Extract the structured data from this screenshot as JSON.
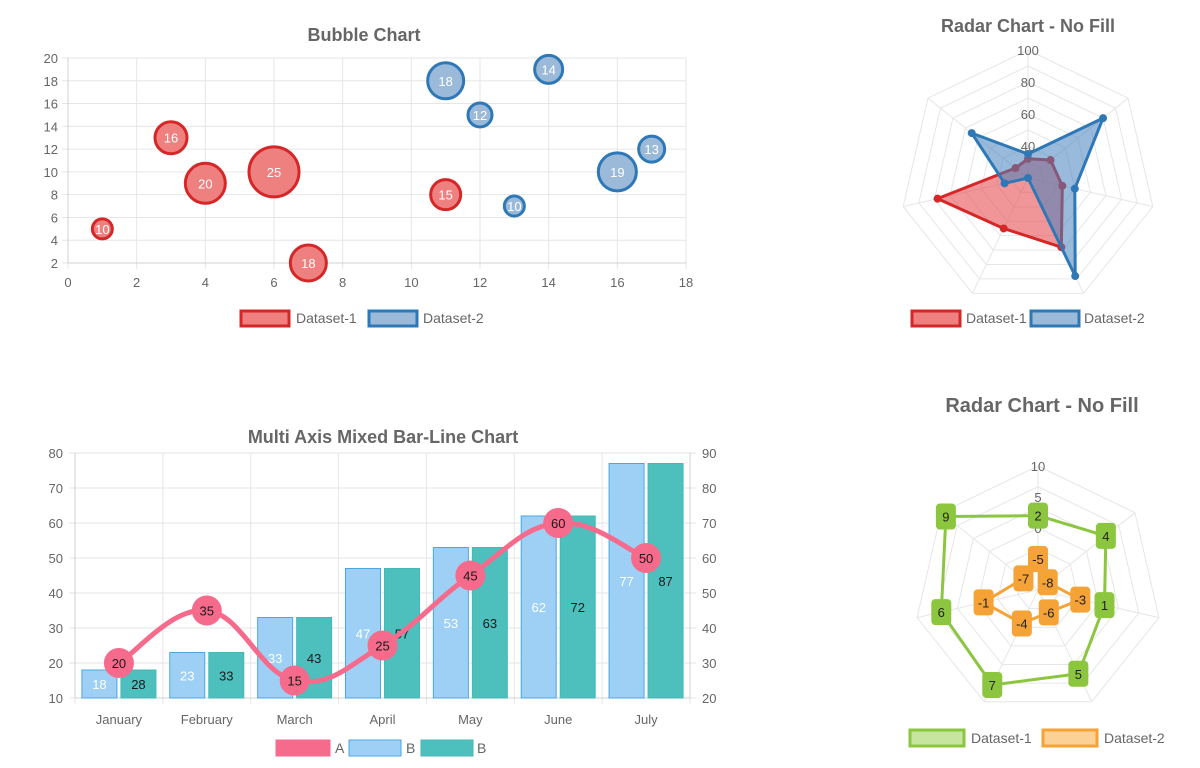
{
  "chart_data": [
    {
      "id": "bubble",
      "type": "scatter",
      "title": "Bubble Chart",
      "xlim": [
        0,
        18
      ],
      "ylim": [
        2,
        20
      ],
      "xticks": [
        "0",
        "2",
        "4",
        "6",
        "8",
        "10",
        "12",
        "14",
        "16",
        "18"
      ],
      "yticks": [
        "2",
        "4",
        "6",
        "8",
        "10",
        "12",
        "14",
        "16",
        "18",
        "20"
      ],
      "grid": true,
      "legend_position": "bottom",
      "series": [
        {
          "name": "Dataset-1",
          "color": "#d62728",
          "fill": "#ee8080",
          "points": [
            {
              "x": 1,
              "y": 5,
              "r": 10
            },
            {
              "x": 3,
              "y": 13,
              "r": 16
            },
            {
              "x": 4,
              "y": 9,
              "r": 20
            },
            {
              "x": 6,
              "y": 10,
              "r": 25
            },
            {
              "x": 7,
              "y": 2,
              "r": 18
            },
            {
              "x": 11,
              "y": 8,
              "r": 15
            }
          ]
        },
        {
          "name": "Dataset-2",
          "color": "#2e78b7",
          "fill": "#9bbad9",
          "points": [
            {
              "x": 11,
              "y": 18,
              "r": 18
            },
            {
              "x": 12,
              "y": 15,
              "r": 12
            },
            {
              "x": 13,
              "y": 7,
              "r": 10
            },
            {
              "x": 14,
              "y": 19,
              "r": 14
            },
            {
              "x": 16,
              "y": 10,
              "r": 19
            },
            {
              "x": 17,
              "y": 12,
              "r": 13
            }
          ]
        }
      ]
    },
    {
      "id": "radar1",
      "type": "radar",
      "title": "Radar Chart  - No Fill",
      "rlim": [
        20,
        100
      ],
      "rticks": [
        "40",
        "60",
        "80",
        "100"
      ],
      "legend_position": "bottom",
      "series": [
        {
          "name": "Dataset-1",
          "color": "#d62728",
          "fill": "rgba(230,80,85,0.6)",
          "values": [
            32,
            38,
            42,
            68,
            55,
            78,
            30
          ]
        },
        {
          "name": "Dataset-2",
          "color": "#2e78b7",
          "fill": "rgba(70,130,190,0.55)",
          "values": [
            35,
            80,
            50,
            88,
            20,
            35,
            65
          ]
        }
      ]
    },
    {
      "id": "mixed",
      "type": "bar",
      "title": "Multi Axis Mixed Bar-Line Chart",
      "categories": [
        "January",
        "February",
        "March",
        "April",
        "May",
        "June",
        "July"
      ],
      "ylim_left": [
        10,
        80
      ],
      "ylim_right": [
        20,
        90
      ],
      "yticks_left": [
        "10",
        "20",
        "30",
        "40",
        "50",
        "60",
        "70",
        "80"
      ],
      "yticks_right": [
        "20",
        "30",
        "40",
        "50",
        "60",
        "70",
        "80",
        "90"
      ],
      "legend_position": "bottom",
      "series": [
        {
          "name": "A",
          "type": "line",
          "axis": "left",
          "color": "#f66a8b",
          "values": [
            20,
            35,
            15,
            25,
            45,
            60,
            50
          ]
        },
        {
          "name": "B",
          "type": "bar",
          "axis": "left",
          "color": "#4aa6e6",
          "fill": "#9ed0f5",
          "values": [
            18,
            23,
            33,
            47,
            53,
            62,
            77
          ]
        },
        {
          "name": "B",
          "type": "bar",
          "axis": "right",
          "color": "#45b9b6",
          "fill": "#4dbfbd",
          "values": [
            28,
            33,
            43,
            57,
            63,
            72,
            87
          ]
        }
      ]
    },
    {
      "id": "radar2",
      "type": "radar",
      "title": "Radar Chart  - No Fill",
      "rlim": [
        -10,
        10
      ],
      "rticks": [
        "0",
        "5",
        "10"
      ],
      "legend_position": "bottom",
      "series": [
        {
          "name": "Dataset-1",
          "color": "#8cc63f",
          "fill": "#c7e59f",
          "values": [
            2,
            4,
            1,
            5,
            7,
            6,
            9
          ]
        },
        {
          "name": "Dataset-2",
          "color": "#f5a236",
          "fill": "#fbd195",
          "values": [
            -5,
            -8,
            -3,
            -6,
            -4,
            -1,
            -7
          ]
        }
      ]
    }
  ]
}
